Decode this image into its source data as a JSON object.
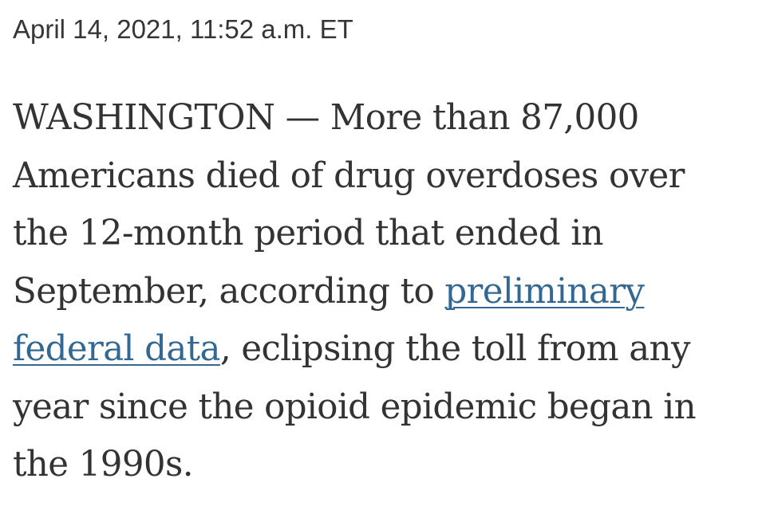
{
  "article": {
    "timestamp": "April 14, 2021, 11:52 a.m. ET",
    "paragraph": {
      "line1": "WASHINGTON — More than 87,000",
      "line2": "Americans died of drug overdoses over",
      "line3": "the 12-month period that ended in",
      "line4_before_link": "September, according to ",
      "link_part1": "preliminary",
      "link_part2": "federal data",
      "line5_after_link": ", eclipsing the toll from any",
      "line6": "year since the opioid epidemic began in",
      "line7": "the 1990s."
    },
    "link_color": "#326891",
    "text_color": "#333333"
  }
}
